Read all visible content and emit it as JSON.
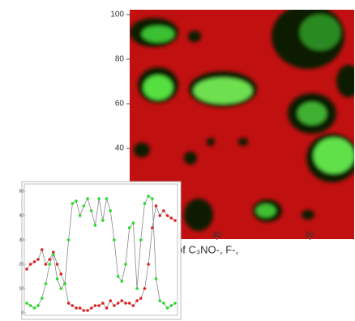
{
  "chart_data": [
    {
      "type": "image",
      "xlabel": "of C₃NO-, F-,",
      "xlim": [
        0,
        100
      ],
      "ylim": [
        0,
        100
      ],
      "xticks": [
        40,
        80
      ],
      "yticks": [
        40,
        60,
        80,
        100
      ]
    },
    {
      "type": "line",
      "x": [
        0,
        1,
        2,
        3,
        4,
        5,
        6,
        7,
        8,
        9,
        10,
        11,
        12,
        13,
        14,
        15,
        16,
        17,
        18,
        19,
        20,
        21,
        22,
        23,
        24,
        25,
        26,
        27,
        28,
        29,
        30,
        31,
        32,
        33,
        34,
        35,
        36,
        37,
        38,
        39
      ],
      "xlim": [
        0,
        39
      ],
      "ylim": [
        0,
        52
      ],
      "yticks": [
        0,
        10,
        20,
        30,
        40,
        50
      ],
      "series": [
        {
          "color": "#e02020",
          "values": [
            18,
            20,
            21,
            22,
            26,
            20,
            22,
            25,
            20,
            16,
            12,
            4,
            3,
            2,
            2,
            1,
            1,
            2,
            3,
            3,
            4,
            2,
            5,
            3,
            4,
            5,
            4,
            4,
            3,
            5,
            6,
            10,
            20,
            35,
            44,
            40,
            42,
            40,
            39,
            38
          ]
        },
        {
          "color": "#22dd22",
          "values": [
            4,
            3,
            2,
            3,
            6,
            12,
            20,
            24,
            14,
            10,
            12,
            30,
            45,
            46,
            40,
            44,
            47,
            42,
            36,
            47,
            38,
            47,
            42,
            30,
            15,
            13,
            20,
            35,
            37,
            10,
            30,
            45,
            48,
            47,
            14,
            5,
            4,
            2,
            3,
            4
          ]
        }
      ]
    }
  ]
}
